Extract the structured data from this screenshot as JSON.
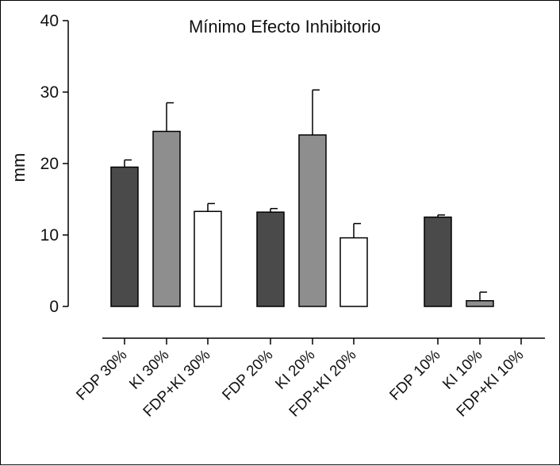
{
  "chart_data": {
    "type": "bar",
    "title": "Mínimo Efecto Inhibitorio",
    "ylabel": "mm",
    "xlabel": "",
    "ylim": [
      0,
      40
    ],
    "yticks": [
      "0",
      "10",
      "20",
      "30",
      "40"
    ],
    "categories": [
      "FDP 30%",
      "KI 30%",
      "FDP+KI 30%",
      "FDP 20%",
      "KI 20%",
      "FDP+KI 20%",
      "FDP 10%",
      "KI 10%",
      "FDP+KI 10%"
    ],
    "values": [
      19.5,
      24.5,
      13.3,
      13.2,
      24.0,
      9.6,
      12.5,
      0.8,
      0
    ],
    "errors": [
      1.0,
      4.0,
      1.1,
      0.5,
      6.3,
      2.0,
      0.3,
      1.2,
      0
    ],
    "colors": [
      "#4a4a4a",
      "#8e8e8e",
      "#ffffff",
      "#4a4a4a",
      "#8e8e8e",
      "#ffffff",
      "#4a4a4a",
      "#8e8e8e",
      "#ffffff"
    ],
    "grid": false,
    "legend": "none"
  }
}
